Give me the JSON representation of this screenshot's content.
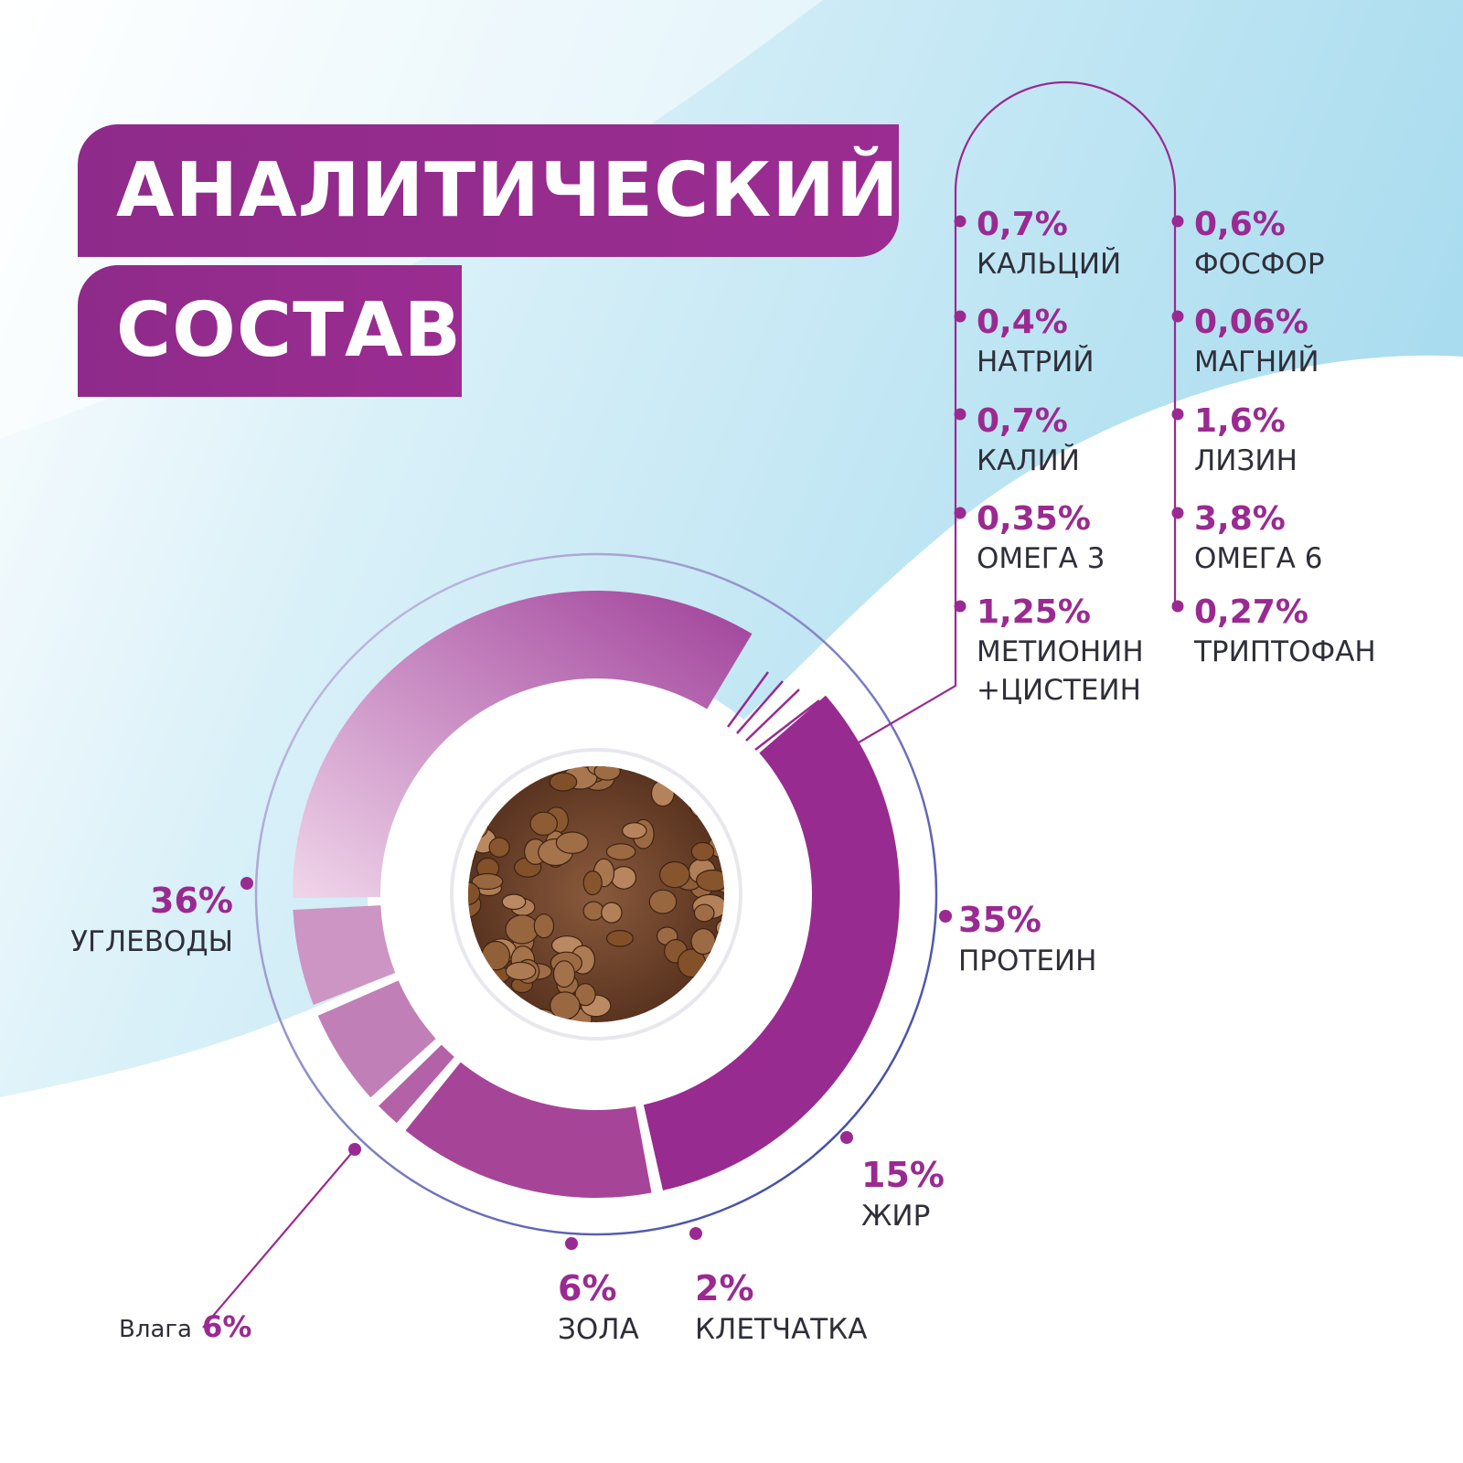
{
  "title": {
    "line1": "АНАЛИТИЧЕСКИЙ",
    "line2": "СОСТАВ"
  },
  "nutrients": [
    {
      "value": "0,7%",
      "name": "КАЛЬЦИЙ"
    },
    {
      "value": "0,4%",
      "name": "НАТРИЙ"
    },
    {
      "value": "0,7%",
      "name": "КАЛИЙ"
    },
    {
      "value": "0,35%",
      "name": "ОМЕГА 3"
    },
    {
      "value": "1,25%",
      "name": "МЕТИОНИН",
      "name2": "+ЦИСТЕИН"
    },
    {
      "value": "0,6%",
      "name": "ФОСФОР"
    },
    {
      "value": "0,06%",
      "name": "МАГНИЙ"
    },
    {
      "value": "1,6%",
      "name": "ЛИЗИН"
    },
    {
      "value": "3,8%",
      "name": "ОМЕГА 6"
    },
    {
      "value": "0,27%",
      "name": "ТРИПТОФАН"
    }
  ],
  "chart_data": {
    "type": "pie",
    "style": "donut",
    "categories": [
      "ПРОТЕИН",
      "ЖИР",
      "КЛЕТЧАТКА",
      "ЗОЛА",
      "Влага",
      "УГЛЕВОДЫ"
    ],
    "values": [
      35,
      15,
      2,
      6,
      6,
      36
    ],
    "labels": [
      "35%",
      "15%",
      "2%",
      "6%",
      "6%",
      "36%"
    ],
    "colors": [
      "#982b90",
      "#a64598",
      "#b462a8",
      "#c080b7",
      "#cc95c4",
      "#c98ac0"
    ]
  },
  "colors": {
    "accent": "#9a2a91",
    "text": "#2f2f3a",
    "sky": "#bfe6f3"
  }
}
